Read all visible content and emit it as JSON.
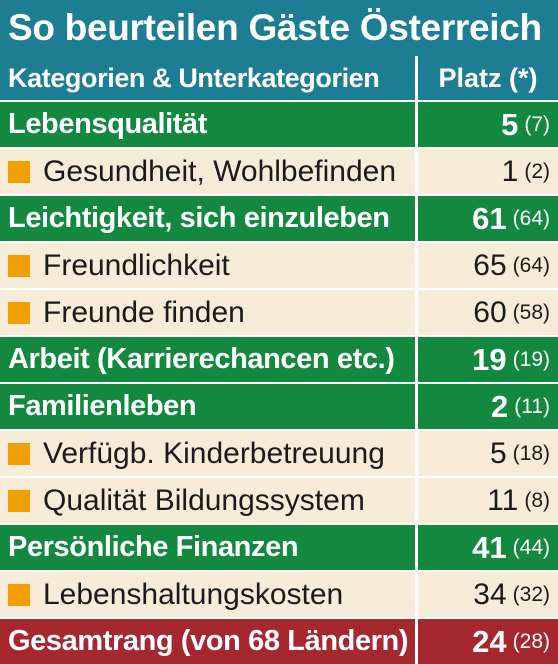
{
  "title": "So beurteilen Gäste Österreich",
  "header": {
    "category": "Kategorien & Unterkategorien",
    "rank": "Platz (*)"
  },
  "colors": {
    "frame": "#1d7d92",
    "category": "#12893f",
    "subcategory": "#f7ecd8",
    "bullet": "#f0a000",
    "total": "#a5282f"
  },
  "chart_data": {
    "type": "table",
    "columns": [
      "Kategorien & Unterkategorien",
      "Platz (*)"
    ],
    "rows": [
      {
        "kind": "category",
        "label": "Lebensqualität",
        "rank": "5",
        "prev": "(7)"
      },
      {
        "kind": "subcategory",
        "label": "Gesundheit, Wohlbefinden",
        "rank": "1",
        "prev": "(2)"
      },
      {
        "kind": "category",
        "label": "Leichtigkeit, sich einzuleben",
        "rank": "61",
        "prev": "(64)"
      },
      {
        "kind": "subcategory",
        "label": "Freundlichkeit",
        "rank": "65",
        "prev": "(64)"
      },
      {
        "kind": "subcategory",
        "label": "Freunde finden",
        "rank": "60",
        "prev": "(58)"
      },
      {
        "kind": "category",
        "label": "Arbeit (Karrierechancen etc.)",
        "rank": "19",
        "prev": "(19)"
      },
      {
        "kind": "category",
        "label": "Familienleben",
        "rank": "2",
        "prev": "(11)"
      },
      {
        "kind": "subcategory",
        "label": "Verfügb. Kinderbetreuung",
        "rank": "5",
        "prev": "(18)"
      },
      {
        "kind": "subcategory",
        "label": "Qualität Bildungssystem",
        "rank": "11",
        "prev": "(8)"
      },
      {
        "kind": "category",
        "label": "Persönliche Finanzen",
        "rank": "41",
        "prev": "(44)"
      },
      {
        "kind": "subcategory",
        "label": "Lebenshaltungskosten",
        "rank": "34",
        "prev": "(32)"
      },
      {
        "kind": "total",
        "label": "Gesamtrang (von 68 Ländern)",
        "rank": "24",
        "prev": "(28)"
      }
    ]
  }
}
